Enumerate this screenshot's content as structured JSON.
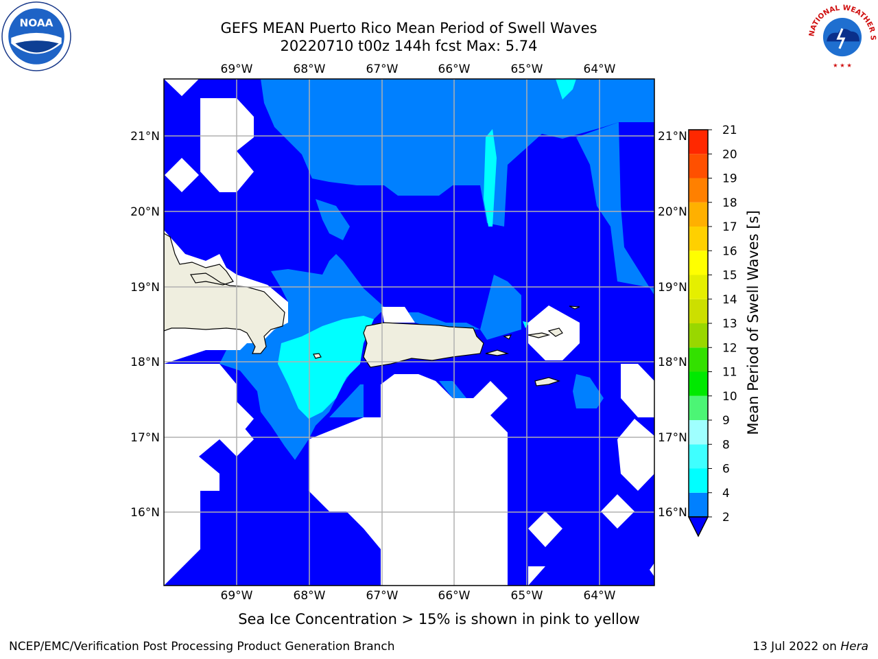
{
  "title": {
    "line1": "GEFS MEAN Puerto Rico Mean Period of Swell Waves",
    "line2": "20220710 t00z 144h fcst   Max: 5.74"
  },
  "logos": {
    "left": "noaa-logo",
    "left_text": "NOAA",
    "right": "national-weather-service-logo",
    "right_text": "NATIONAL WEATHER SERVICE"
  },
  "map": {
    "lon_labels": [
      "69°W",
      "68°W",
      "67°W",
      "66°W",
      "65°W",
      "64°W"
    ],
    "lat_labels": [
      "21°N",
      "20°N",
      "19°N",
      "18°N",
      "17°N",
      "16°N"
    ],
    "fill_colors": {
      "land": "#efeedf",
      "no_data": "#ffffff",
      "band_2_4": "#0000ff",
      "band_4_6": "#0080ff",
      "band_6_8": "#00ffff"
    }
  },
  "colorbar": {
    "label": "Mean Period of Swell Waves [s]",
    "ticks": [
      "2",
      "4",
      "6",
      "8",
      "9",
      "10",
      "11",
      "12",
      "13",
      "14",
      "15",
      "16",
      "17",
      "18",
      "19",
      "20",
      "21"
    ],
    "colors": [
      "#0080ff",
      "#00ffff",
      "#3fffff",
      "#9fffff",
      "#4cf575",
      "#00e900",
      "#33e000",
      "#99d700",
      "#ccdf00",
      "#e5ef00",
      "#ffff00",
      "#ffd000",
      "#ffb000",
      "#ff8000",
      "#ff5000",
      "#ff2800",
      "#ff0000"
    ],
    "extend_color": "#0000ff"
  },
  "notes": {
    "ice": "Sea Ice Concentration > 15% is shown in pink to yellow",
    "footer_left": "NCEP/EMC/Verification Post Processing Product Generation Branch",
    "footer_date": "13 Jul 2022 on",
    "footer_host": "Hera"
  }
}
